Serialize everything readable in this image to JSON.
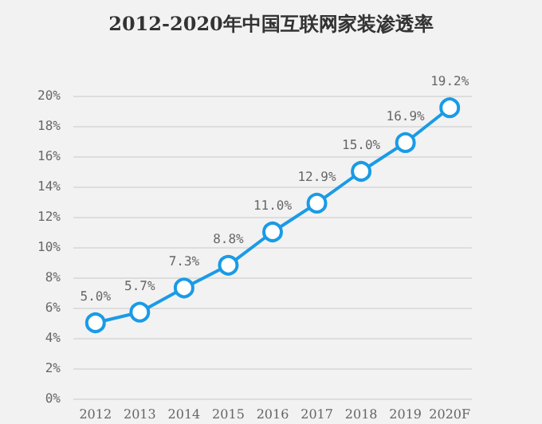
{
  "chart_data": {
    "type": "line",
    "title": "2012-2020年中国互联网家装渗透率",
    "categories": [
      "2012",
      "2013",
      "2014",
      "2015",
      "2016",
      "2017",
      "2018",
      "2019",
      "2020F"
    ],
    "series": [
      {
        "color": "#1a9be6",
        "values": [
          5.0,
          5.7,
          7.3,
          8.8,
          11.0,
          12.9,
          15.0,
          16.9,
          19.2
        ],
        "value_labels": [
          "5.0%",
          "5.7%",
          "7.3%",
          "8.8%",
          "11.0%",
          "12.9%",
          "15.0%",
          "16.9%",
          "19.2%"
        ]
      }
    ],
    "ylim": [
      0,
      20
    ],
    "yticks": [
      {
        "value": 0,
        "label": "0%"
      },
      {
        "value": 2,
        "label": "2%"
      },
      {
        "value": 4,
        "label": "4%"
      },
      {
        "value": 6,
        "label": "6%"
      },
      {
        "value": 8,
        "label": "8%"
      },
      {
        "value": 10,
        "label": "10%"
      },
      {
        "value": 12,
        "label": "12%"
      },
      {
        "value": 14,
        "label": "14%"
      },
      {
        "value": 16,
        "label": "16%"
      },
      {
        "value": 18,
        "label": "18%"
      },
      {
        "value": 20,
        "label": "20%"
      }
    ],
    "grid": "y",
    "marker": "circle",
    "line_style": "solid"
  }
}
